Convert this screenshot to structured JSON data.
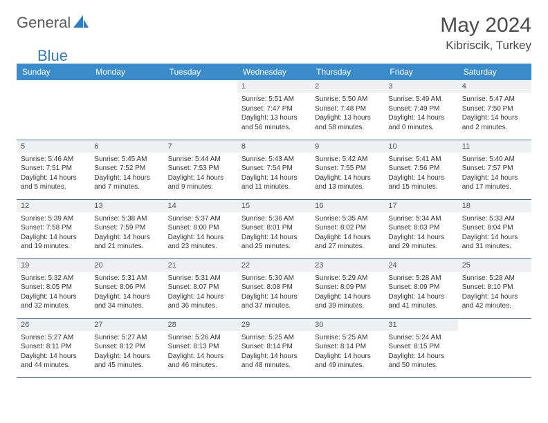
{
  "logo": {
    "text1": "General",
    "text2": "Blue"
  },
  "title": "May 2024",
  "location": "Kibriscik, Turkey",
  "colors": {
    "header_bg": "#3a8bc9",
    "header_text": "#ffffff",
    "daynum_bg": "#eef0f2",
    "border": "#3a6a9a",
    "logo_blue": "#2d7dc4",
    "logo_gray": "#5a5a5a"
  },
  "day_headers": [
    "Sunday",
    "Monday",
    "Tuesday",
    "Wednesday",
    "Thursday",
    "Friday",
    "Saturday"
  ],
  "weeks": [
    [
      null,
      null,
      null,
      {
        "n": "1",
        "sr": "5:51 AM",
        "ss": "7:47 PM",
        "dl": "13 hours and 56 minutes."
      },
      {
        "n": "2",
        "sr": "5:50 AM",
        "ss": "7:48 PM",
        "dl": "13 hours and 58 minutes."
      },
      {
        "n": "3",
        "sr": "5:49 AM",
        "ss": "7:49 PM",
        "dl": "14 hours and 0 minutes."
      },
      {
        "n": "4",
        "sr": "5:47 AM",
        "ss": "7:50 PM",
        "dl": "14 hours and 2 minutes."
      }
    ],
    [
      {
        "n": "5",
        "sr": "5:46 AM",
        "ss": "7:51 PM",
        "dl": "14 hours and 5 minutes."
      },
      {
        "n": "6",
        "sr": "5:45 AM",
        "ss": "7:52 PM",
        "dl": "14 hours and 7 minutes."
      },
      {
        "n": "7",
        "sr": "5:44 AM",
        "ss": "7:53 PM",
        "dl": "14 hours and 9 minutes."
      },
      {
        "n": "8",
        "sr": "5:43 AM",
        "ss": "7:54 PM",
        "dl": "14 hours and 11 minutes."
      },
      {
        "n": "9",
        "sr": "5:42 AM",
        "ss": "7:55 PM",
        "dl": "14 hours and 13 minutes."
      },
      {
        "n": "10",
        "sr": "5:41 AM",
        "ss": "7:56 PM",
        "dl": "14 hours and 15 minutes."
      },
      {
        "n": "11",
        "sr": "5:40 AM",
        "ss": "7:57 PM",
        "dl": "14 hours and 17 minutes."
      }
    ],
    [
      {
        "n": "12",
        "sr": "5:39 AM",
        "ss": "7:58 PM",
        "dl": "14 hours and 19 minutes."
      },
      {
        "n": "13",
        "sr": "5:38 AM",
        "ss": "7:59 PM",
        "dl": "14 hours and 21 minutes."
      },
      {
        "n": "14",
        "sr": "5:37 AM",
        "ss": "8:00 PM",
        "dl": "14 hours and 23 minutes."
      },
      {
        "n": "15",
        "sr": "5:36 AM",
        "ss": "8:01 PM",
        "dl": "14 hours and 25 minutes."
      },
      {
        "n": "16",
        "sr": "5:35 AM",
        "ss": "8:02 PM",
        "dl": "14 hours and 27 minutes."
      },
      {
        "n": "17",
        "sr": "5:34 AM",
        "ss": "8:03 PM",
        "dl": "14 hours and 29 minutes."
      },
      {
        "n": "18",
        "sr": "5:33 AM",
        "ss": "8:04 PM",
        "dl": "14 hours and 31 minutes."
      }
    ],
    [
      {
        "n": "19",
        "sr": "5:32 AM",
        "ss": "8:05 PM",
        "dl": "14 hours and 32 minutes."
      },
      {
        "n": "20",
        "sr": "5:31 AM",
        "ss": "8:06 PM",
        "dl": "14 hours and 34 minutes."
      },
      {
        "n": "21",
        "sr": "5:31 AM",
        "ss": "8:07 PM",
        "dl": "14 hours and 36 minutes."
      },
      {
        "n": "22",
        "sr": "5:30 AM",
        "ss": "8:08 PM",
        "dl": "14 hours and 37 minutes."
      },
      {
        "n": "23",
        "sr": "5:29 AM",
        "ss": "8:09 PM",
        "dl": "14 hours and 39 minutes."
      },
      {
        "n": "24",
        "sr": "5:28 AM",
        "ss": "8:09 PM",
        "dl": "14 hours and 41 minutes."
      },
      {
        "n": "25",
        "sr": "5:28 AM",
        "ss": "8:10 PM",
        "dl": "14 hours and 42 minutes."
      }
    ],
    [
      {
        "n": "26",
        "sr": "5:27 AM",
        "ss": "8:11 PM",
        "dl": "14 hours and 44 minutes."
      },
      {
        "n": "27",
        "sr": "5:27 AM",
        "ss": "8:12 PM",
        "dl": "14 hours and 45 minutes."
      },
      {
        "n": "28",
        "sr": "5:26 AM",
        "ss": "8:13 PM",
        "dl": "14 hours and 46 minutes."
      },
      {
        "n": "29",
        "sr": "5:25 AM",
        "ss": "8:14 PM",
        "dl": "14 hours and 48 minutes."
      },
      {
        "n": "30",
        "sr": "5:25 AM",
        "ss": "8:14 PM",
        "dl": "14 hours and 49 minutes."
      },
      {
        "n": "31",
        "sr": "5:24 AM",
        "ss": "8:15 PM",
        "dl": "14 hours and 50 minutes."
      },
      null
    ]
  ],
  "labels": {
    "sunrise": "Sunrise:",
    "sunset": "Sunset:",
    "daylight": "Daylight:"
  }
}
